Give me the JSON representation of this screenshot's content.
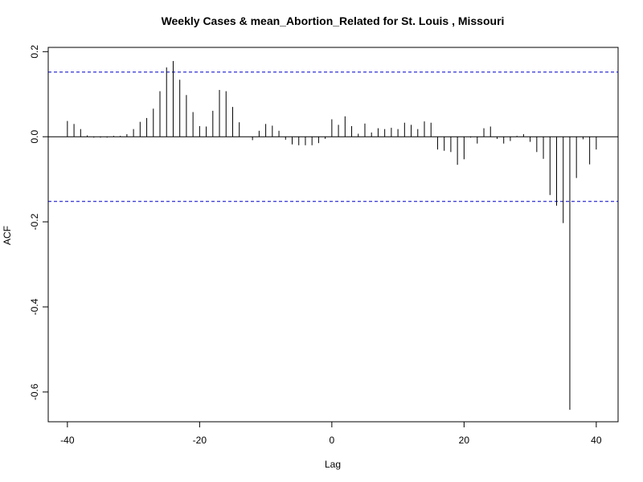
{
  "chart_data": {
    "type": "bar",
    "title": "Weekly Cases & mean_Abortion_Related for St. Louis , Missouri",
    "xlabel": "Lag",
    "ylabel": "ACF",
    "xlim": [
      -40,
      40
    ],
    "ylim": [
      -0.67,
      0.21
    ],
    "x_ticks": [
      -40,
      -20,
      0,
      20,
      40
    ],
    "x_tick_labels": [
      "-40",
      "-20",
      "0",
      "20",
      "40"
    ],
    "y_ticks": [
      0.2,
      0.0,
      -0.2,
      -0.4,
      -0.6
    ],
    "y_tick_labels": [
      "0.2",
      "0.0",
      "-0.2",
      "-0.4",
      "-0.6"
    ],
    "zero_line": 0,
    "confidence_bounds": [
      0.152,
      -0.152
    ],
    "confidence_color": "#0000cc",
    "bar_color": "#000000",
    "lags": [
      -40,
      -39,
      -38,
      -37,
      -36,
      -35,
      -34,
      -33,
      -32,
      -31,
      -30,
      -29,
      -28,
      -27,
      -26,
      -25,
      -24,
      -23,
      -22,
      -21,
      -20,
      -19,
      -18,
      -17,
      -16,
      -15,
      -14,
      -13,
      -12,
      -11,
      -10,
      -9,
      -8,
      -7,
      -6,
      -5,
      -4,
      -3,
      -2,
      -1,
      0,
      1,
      2,
      3,
      4,
      5,
      6,
      7,
      8,
      9,
      10,
      11,
      12,
      13,
      14,
      15,
      16,
      17,
      18,
      19,
      20,
      21,
      22,
      23,
      24,
      25,
      26,
      27,
      28,
      29,
      30,
      31,
      32,
      33,
      34,
      35,
      36,
      37,
      38,
      39,
      40
    ],
    "values": [
      0.037,
      0.03,
      0.018,
      0.003,
      -0.002,
      -0.002,
      -0.002,
      0.002,
      0.002,
      0.006,
      0.018,
      0.035,
      0.044,
      0.066,
      0.107,
      0.163,
      0.178,
      0.134,
      0.098,
      0.058,
      0.025,
      0.024,
      0.061,
      0.11,
      0.107,
      0.07,
      0.034,
      0.0,
      -0.008,
      0.014,
      0.03,
      0.026,
      0.014,
      -0.007,
      -0.018,
      -0.02,
      -0.02,
      -0.02,
      -0.015,
      -0.005,
      0.041,
      0.028,
      0.048,
      0.025,
      0.007,
      0.031,
      0.01,
      0.02,
      0.018,
      0.021,
      0.018,
      0.033,
      0.028,
      0.018,
      0.036,
      0.033,
      -0.03,
      -0.033,
      -0.036,
      -0.066,
      -0.053,
      -0.002,
      -0.016,
      0.02,
      0.024,
      -0.005,
      -0.016,
      -0.01,
      0.002,
      0.006,
      -0.012,
      -0.036,
      -0.052,
      -0.137,
      -0.162,
      -0.203,
      -0.642,
      -0.097,
      -0.006,
      -0.065,
      -0.03
    ]
  }
}
